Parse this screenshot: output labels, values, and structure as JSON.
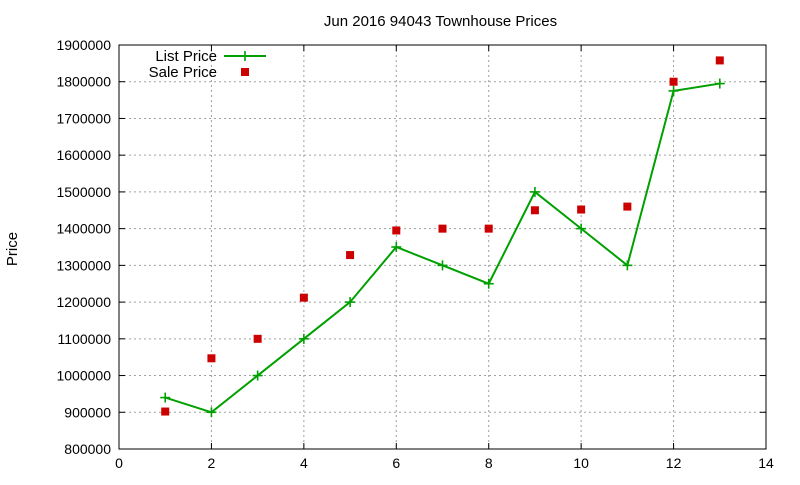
{
  "chart_data": {
    "type": "line",
    "title": "Jun 2016 94043 Townhouse Prices",
    "xlabel": "",
    "ylabel": "Price",
    "xlim": [
      0,
      14
    ],
    "ylim": [
      800000,
      1900000
    ],
    "x_ticks": [
      0,
      2,
      4,
      6,
      8,
      10,
      12,
      14
    ],
    "y_ticks": [
      800000,
      900000,
      1000000,
      1100000,
      1200000,
      1300000,
      1400000,
      1500000,
      1600000,
      1700000,
      1800000,
      1900000
    ],
    "grid": true,
    "legend_position": "top-left",
    "series": [
      {
        "name": "List Price",
        "style": "line-plus",
        "color": "#00a000",
        "x": [
          1,
          2,
          3,
          4,
          5,
          6,
          7,
          8,
          9,
          10,
          11,
          12,
          13
        ],
        "y": [
          940000,
          900000,
          1000000,
          1100000,
          1200000,
          1350000,
          1300000,
          1250000,
          1500000,
          1400000,
          1300000,
          1775000,
          1795000
        ]
      },
      {
        "name": "Sale Price",
        "style": "square-points",
        "color": "#cc0000",
        "x": [
          1,
          2,
          3,
          4,
          5,
          6,
          7,
          8,
          9,
          10,
          11,
          12,
          13
        ],
        "y": [
          902000,
          1047000,
          1100000,
          1212000,
          1328000,
          1395000,
          1400000,
          1400000,
          1450000,
          1452000,
          1460000,
          1800000,
          1858000
        ]
      }
    ]
  }
}
